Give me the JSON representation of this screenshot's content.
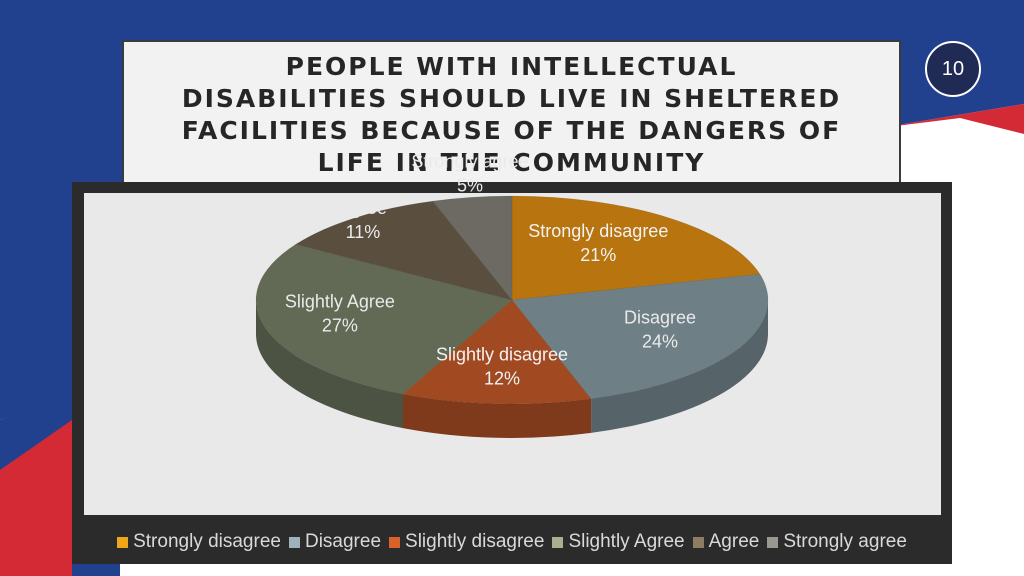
{
  "slide": {
    "title": "PEOPLE WITH INTELLECTUAL\nDISABILITIES SHOULD LIVE IN SHELTERED\nFACILITIES BECAUSE OF THE DANGERS OF\nLIFE IN THE COMMUNITY",
    "page_number": "10"
  },
  "chart_data": {
    "type": "pie",
    "title": "",
    "slices": [
      {
        "label": "Strongly disagree",
        "value": 21,
        "value_label": "21%",
        "color": "#b8740f"
      },
      {
        "label": "Disagree",
        "value": 24,
        "value_label": "24%",
        "color": "#6e7f86"
      },
      {
        "label": "Slightly disagree",
        "value": 12,
        "value_label": "12%",
        "color": "#a14a22"
      },
      {
        "label": "Slightly Agree",
        "value": 27,
        "value_label": "27%",
        "color": "#626a56"
      },
      {
        "label": "Agree",
        "value": 11,
        "value_label": "11%",
        "color": "#5a4f3f"
      },
      {
        "label": "Strongly agree",
        "value": 5,
        "value_label": "5%",
        "color": "#6c6a63"
      }
    ],
    "legend": {
      "position": "bottom",
      "items": [
        {
          "label": "Strongly disagree",
          "color": "#f0a61b"
        },
        {
          "label": "Disagree",
          "color": "#9fb2bb"
        },
        {
          "label": "Slightly disagree",
          "color": "#d9622b"
        },
        {
          "label": "Slightly Agree",
          "color": "#a8b08f"
        },
        {
          "label": "Agree",
          "color": "#8f7d63"
        },
        {
          "label": "Strongly agree",
          "color": "#9a9891"
        }
      ]
    }
  }
}
